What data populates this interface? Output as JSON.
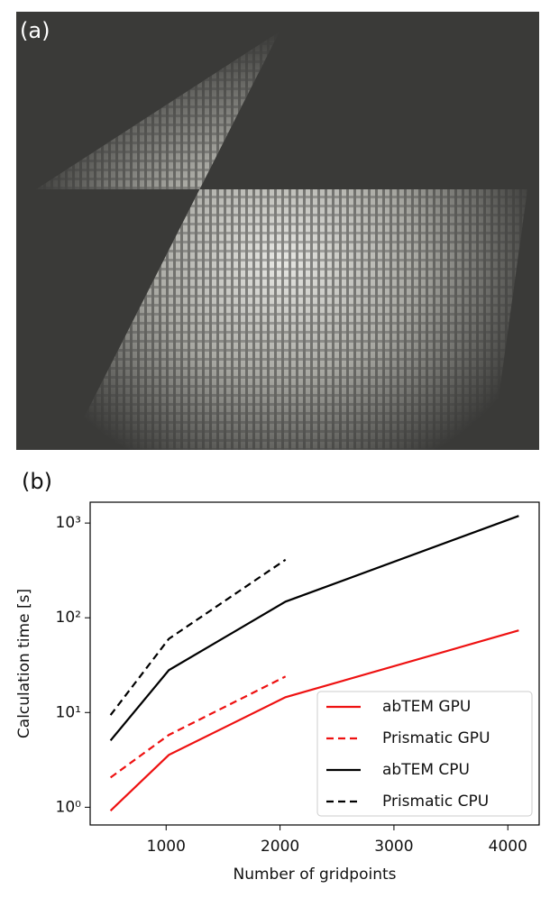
{
  "panel_labels": [
    "(a)",
    "(b)"
  ],
  "chart_data": {
    "type": "line",
    "xlabel": "Number of gridpoints",
    "ylabel": "Calculation time [s]",
    "x": [
      512,
      1024,
      2048,
      4096
    ],
    "series": [
      {
        "name": "abTEM GPU",
        "color": "#ee1111",
        "dash": false,
        "values": [
          0.92,
          3.57,
          14.5,
          73.6
        ]
      },
      {
        "name": "Prismatic GPU",
        "color": "#ee1111",
        "dash": true,
        "values": [
          2.06,
          5.8,
          24,
          null
        ]
      },
      {
        "name": "abTEM CPU",
        "color": "#000000",
        "dash": false,
        "values": [
          5.07,
          28,
          148,
          1190
        ]
      },
      {
        "name": "Prismatic CPU",
        "color": "#000000",
        "dash": true,
        "values": [
          9.4,
          60,
          410,
          null
        ]
      }
    ],
    "xlim": [
      333,
      4275
    ],
    "xticks": [
      1000,
      2000,
      3000,
      4000
    ],
    "ylim": [
      0.65,
      1660
    ],
    "log_y": true,
    "yticks": [
      {
        "value": 1,
        "label": "10⁰"
      },
      {
        "value": 10,
        "label": "10¹"
      },
      {
        "value": 100,
        "label": "10²"
      },
      {
        "value": 1000,
        "label": "10³"
      }
    ],
    "grid": false,
    "legend": "lower right"
  }
}
